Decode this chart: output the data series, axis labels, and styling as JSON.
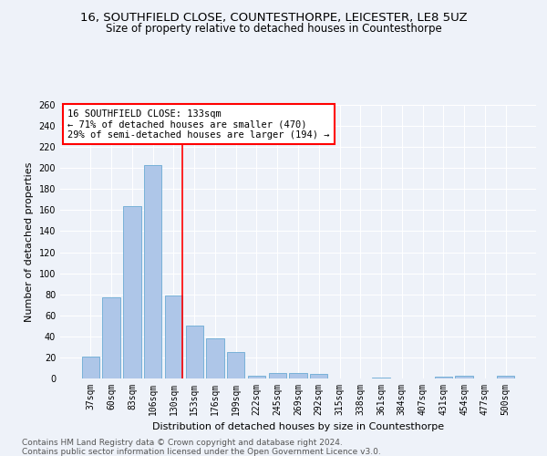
{
  "title1": "16, SOUTHFIELD CLOSE, COUNTESTHORPE, LEICESTER, LE8 5UZ",
  "title2": "Size of property relative to detached houses in Countesthorpe",
  "xlabel": "Distribution of detached houses by size in Countesthorpe",
  "ylabel": "Number of detached properties",
  "categories": [
    "37sqm",
    "60sqm",
    "83sqm",
    "106sqm",
    "130sqm",
    "153sqm",
    "176sqm",
    "199sqm",
    "222sqm",
    "245sqm",
    "269sqm",
    "292sqm",
    "315sqm",
    "338sqm",
    "361sqm",
    "384sqm",
    "407sqm",
    "431sqm",
    "454sqm",
    "477sqm",
    "500sqm"
  ],
  "values": [
    21,
    77,
    164,
    203,
    79,
    50,
    38,
    25,
    3,
    5,
    5,
    4,
    0,
    0,
    1,
    0,
    0,
    2,
    3,
    0,
    3
  ],
  "bar_color": "#aec6e8",
  "bar_edge_color": "#6aaad4",
  "red_line_index": 4,
  "annotation_title": "16 SOUTHFIELD CLOSE: 133sqm",
  "annotation_line2": "← 71% of detached houses are smaller (470)",
  "annotation_line3": "29% of semi-detached houses are larger (194) →",
  "ylim": [
    0,
    260
  ],
  "yticks": [
    0,
    20,
    40,
    60,
    80,
    100,
    120,
    140,
    160,
    180,
    200,
    220,
    240,
    260
  ],
  "footnote1": "Contains HM Land Registry data © Crown copyright and database right 2024.",
  "footnote2": "Contains public sector information licensed under the Open Government Licence v3.0.",
  "bg_color": "#eef2f9",
  "plot_bg_color": "#eef2f9",
  "grid_color": "#ffffff",
  "title1_fontsize": 9.5,
  "title2_fontsize": 8.5,
  "xlabel_fontsize": 8,
  "ylabel_fontsize": 8,
  "tick_fontsize": 7,
  "annotation_fontsize": 7.5,
  "footnote_fontsize": 6.5
}
